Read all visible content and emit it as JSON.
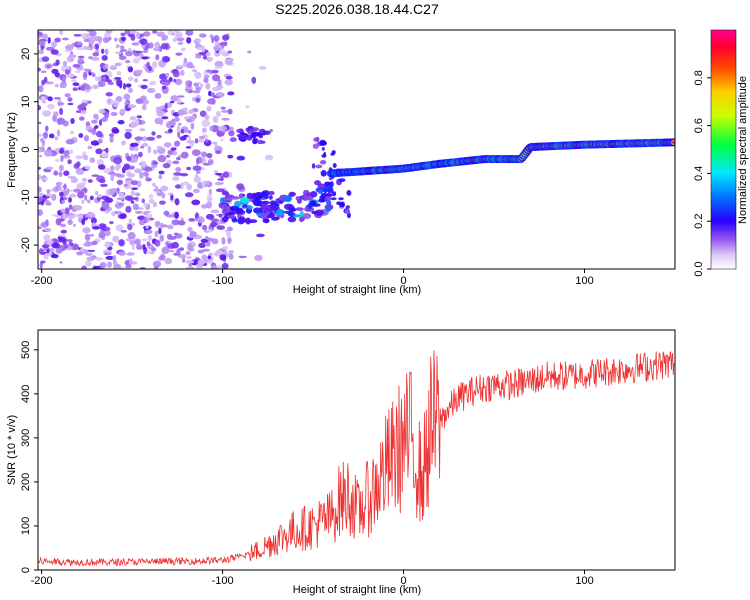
{
  "chart_data": [
    {
      "type": "heatmap",
      "title": "S225.2026.038.18.44.C27",
      "xlabel": "Height of straight line (km)",
      "ylabel": "Frequency (Hz)",
      "xlim": [
        -202,
        150
      ],
      "ylim": [
        -25,
        25
      ],
      "xticks": [
        -200,
        -100,
        0,
        100
      ],
      "yticks": [
        -20,
        -10,
        0,
        10,
        20
      ],
      "tick_labels_x": [
        "-200",
        "-100",
        "0",
        "100"
      ],
      "tick_labels_y": [
        "-20",
        "-10",
        "0",
        "10",
        "20"
      ],
      "colorbar": {
        "label": "Normalized spectral amplitude",
        "range": [
          0,
          1
        ],
        "ticks": [
          0.0,
          0.2,
          0.4,
          0.6,
          0.8
        ],
        "tick_labels": [
          "0.0",
          "0.2",
          "0.4",
          "0.6",
          "0.8"
        ],
        "colors": [
          "#ffffff",
          "#c9a8f5",
          "#7a2df0",
          "#0000ff",
          "#00ffff",
          "#00ff00",
          "#ffff00",
          "#ff7f00",
          "#ff0000",
          "#ff0080"
        ]
      },
      "features": [
        {
          "name": "noise-field",
          "x_range": [
            -202,
            -95
          ],
          "y_range": [
            -25,
            25
          ],
          "level": 0.15
        },
        {
          "name": "dispersed-branch",
          "x_range": [
            -100,
            -40
          ],
          "y_center": -12,
          "level": 0.35
        },
        {
          "name": "upper-branch",
          "x_range": [
            -95,
            -75
          ],
          "y_center": 3,
          "level": 0.3
        },
        {
          "name": "main-ridge",
          "points": [
            [
              -40,
              -5
            ],
            [
              -20,
              -4.5
            ],
            [
              0,
              -4
            ],
            [
              20,
              -3
            ],
            [
              45,
              -2
            ],
            [
              65,
              -2
            ],
            [
              70,
              0.5
            ],
            [
              100,
              1
            ],
            [
              150,
              1.5
            ]
          ],
          "level": 0.85
        }
      ]
    },
    {
      "type": "line",
      "xlabel": "Height of straight line (km)",
      "ylabel": "SNR (10 * v/v)",
      "xlim": [
        -202,
        150
      ],
      "ylim": [
        0,
        545
      ],
      "xticks": [
        -200,
        -100,
        0,
        100
      ],
      "yticks": [
        0,
        100,
        200,
        300,
        400,
        500
      ],
      "tick_labels_x": [
        "-200",
        "-100",
        "0",
        "100"
      ],
      "tick_labels_y": [
        "0",
        "100",
        "200",
        "300",
        "400",
        "500"
      ],
      "color": "#ee3030",
      "series": [
        {
          "name": "SNR",
          "x": [
            -202,
            -180,
            -160,
            -140,
            -120,
            -100,
            -90,
            -80,
            -70,
            -60,
            -50,
            -40,
            -35,
            -30,
            -25,
            -20,
            -15,
            -10,
            -5,
            0,
            5,
            10,
            15,
            20,
            30,
            40,
            50,
            60,
            70,
            80,
            90,
            100,
            110,
            120,
            130,
            140,
            150
          ],
          "y": [
            20,
            18,
            18,
            19,
            20,
            22,
            30,
            45,
            70,
            90,
            100,
            120,
            160,
            170,
            130,
            160,
            190,
            230,
            260,
            290,
            300,
            200,
            320,
            340,
            390,
            410,
            420,
            420,
            430,
            440,
            440,
            445,
            450,
            455,
            460,
            465,
            470
          ]
        }
      ]
    }
  ]
}
